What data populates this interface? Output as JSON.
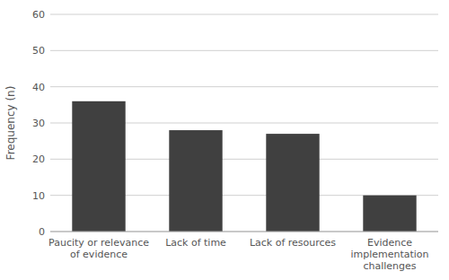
{
  "chart_data": {
    "type": "bar",
    "categories": [
      "Paucity or relevance\nof evidence",
      "Lack of time",
      "Lack of resources",
      "Evidence\nimplementation\nchallenges"
    ],
    "values": [
      36,
      28,
      27,
      10
    ],
    "color": "#404040",
    "ylabel": "Frequency (n)",
    "ylim": [
      0,
      60
    ],
    "yticks": [
      0,
      10,
      20,
      30,
      40,
      50,
      60
    ],
    "grid": true
  }
}
